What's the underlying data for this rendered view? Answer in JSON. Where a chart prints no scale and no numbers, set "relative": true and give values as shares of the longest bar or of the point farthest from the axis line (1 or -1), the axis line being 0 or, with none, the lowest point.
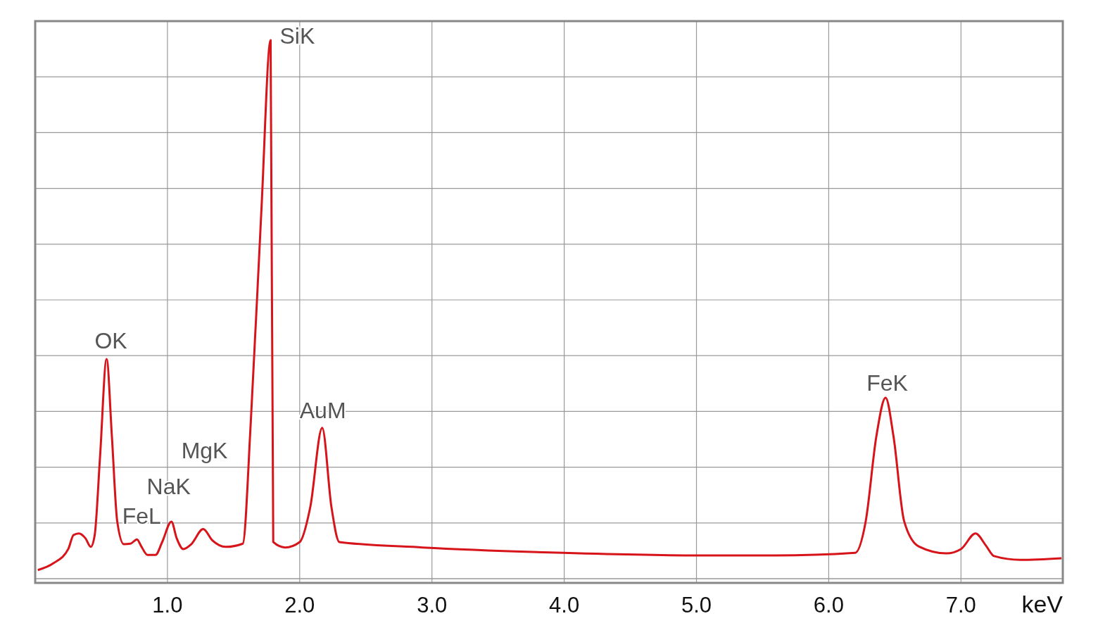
{
  "chart_data": {
    "type": "line",
    "xlabel": "keV",
    "relative": true,
    "grid": true,
    "marker": "none",
    "line_style": "solid",
    "xlim": [
      0,
      7.77
    ],
    "xticks": [
      {
        "value": 1,
        "label": "1.0"
      },
      {
        "value": 2,
        "label": "2.0"
      },
      {
        "value": 3,
        "label": "3.0"
      },
      {
        "value": 4,
        "label": "4.0"
      },
      {
        "value": 5,
        "label": "5.0"
      },
      {
        "value": 6,
        "label": "6.0"
      },
      {
        "value": 7,
        "label": "7.0"
      }
    ],
    "series": [
      {
        "color": "#d7141a",
        "x": [
          0.02,
          0.14,
          0.25,
          0.29,
          0.33,
          0.38,
          0.42,
          0.45,
          0.49,
          0.54,
          0.58,
          0.62,
          0.67,
          0.72,
          0.77,
          0.8,
          0.85,
          0.91,
          0.96,
          1.03,
          1.07,
          1.12,
          1.18,
          1.27,
          1.34,
          1.44,
          1.57,
          1.63,
          1.71,
          1.78,
          1.8,
          1.89,
          2.0,
          2.08,
          2.17,
          2.24,
          2.3,
          2.93,
          3.99,
          5.06,
          5.59,
          6.2,
          6.28,
          6.36,
          6.43,
          6.49,
          6.57,
          6.68,
          6.89,
          7.0,
          7.11,
          7.19,
          7.25,
          7.45,
          7.76
        ],
        "values": [
          0.016,
          0.029,
          0.055,
          0.081,
          0.084,
          0.075,
          0.059,
          0.081,
          0.225,
          0.408,
          0.264,
          0.107,
          0.064,
          0.065,
          0.073,
          0.061,
          0.044,
          0.044,
          0.068,
          0.106,
          0.075,
          0.055,
          0.064,
          0.092,
          0.071,
          0.059,
          0.065,
          0.29,
          0.682,
          1.0,
          0.068,
          0.058,
          0.068,
          0.133,
          0.28,
          0.133,
          0.068,
          0.058,
          0.048,
          0.043,
          0.043,
          0.048,
          0.107,
          0.264,
          0.336,
          0.264,
          0.107,
          0.06,
          0.047,
          0.055,
          0.084,
          0.061,
          0.042,
          0.035,
          0.038
        ]
      }
    ],
    "annotations": [
      {
        "text": "OK",
        "x": 0.54,
        "y": 0.408
      },
      {
        "text": "FeL",
        "x": 0.77,
        "y": 0.073
      },
      {
        "text": "NaK",
        "x": 1.03,
        "y": 0.106
      },
      {
        "text": "MgK",
        "x": 1.27,
        "y": 0.092
      },
      {
        "text": "SiK",
        "x": 1.78,
        "y": 1.0
      },
      {
        "text": "AuM",
        "x": 2.17,
        "y": 0.28
      },
      {
        "text": "FeK",
        "x": 6.43,
        "y": 0.336
      }
    ]
  }
}
